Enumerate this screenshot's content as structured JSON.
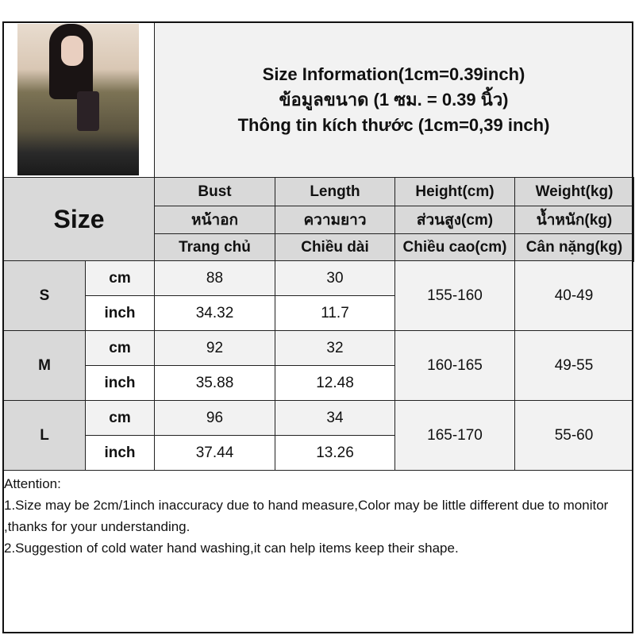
{
  "title": {
    "lines": [
      "Size Information(1cm=0.39inch)",
      "ข้อมูลขนาด (1 ซม. = 0.39 นิ้ว)",
      "Thông tin kích thước (1cm=0,39 inch)"
    ]
  },
  "header": {
    "size_label": "Size",
    "columns": [
      {
        "en": "Bust",
        "th": "หน้าอก",
        "vi": "Trang chủ"
      },
      {
        "en": "Length",
        "th": "ความยาว",
        "vi": "Chiều dài"
      },
      {
        "en": "Height(cm)",
        "th": "ส่วนสูง(cm)",
        "vi": "Chiều cao(cm)"
      },
      {
        "en": "Weight(kg)",
        "th": "น้ำหนัก(kg)",
        "vi": "Cân nặng(kg)"
      }
    ]
  },
  "rows": [
    {
      "size": "S",
      "cm_label": "cm",
      "inch_label": "inch",
      "bust_cm": "88",
      "length_cm": "30",
      "bust_inch": "34.32",
      "length_inch": "11.7",
      "height": "155-160",
      "weight": "40-49"
    },
    {
      "size": "M",
      "cm_label": "cm",
      "inch_label": "inch",
      "bust_cm": "92",
      "length_cm": "32",
      "bust_inch": "35.88",
      "length_inch": "12.48",
      "height": "160-165",
      "weight": "49-55"
    },
    {
      "size": "L",
      "cm_label": "cm",
      "inch_label": "inch",
      "bust_cm": "96",
      "length_cm": "34",
      "bust_inch": "37.44",
      "length_inch": "13.26",
      "height": "165-170",
      "weight": "55-60"
    }
  ],
  "attention": {
    "heading": "Attention:",
    "notes": [
      "1.Size may be 2cm/1inch inaccuracy due to hand measure,Color may be little different due to monitor ,thanks for your understanding.",
      "2.Suggestion of cold water hand washing,it can help items keep their shape."
    ]
  }
}
